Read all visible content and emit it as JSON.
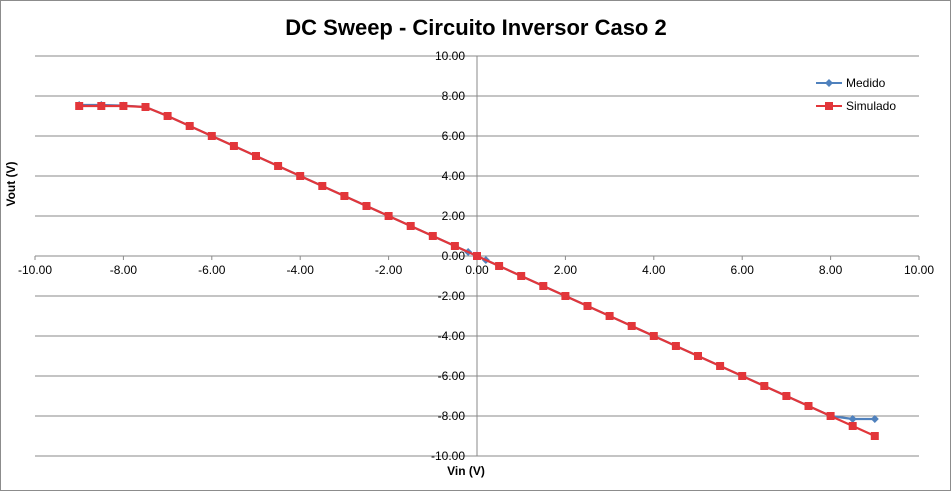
{
  "chart_data": {
    "type": "line",
    "title": "DC Sweep - Circuito Inversor Caso 2",
    "xlabel": "Vin (V)",
    "ylabel": "Vout (V)",
    "xlim": [
      -10,
      10
    ],
    "ylim": [
      -10,
      10
    ],
    "x_ticks": [
      "-10.00",
      "-8.00",
      "-6.00",
      "-4.00",
      "-2.00",
      "0.00",
      "2.00",
      "4.00",
      "6.00",
      "8.00",
      "10.00"
    ],
    "y_ticks": [
      "10.00",
      "8.00",
      "6.00",
      "4.00",
      "2.00",
      "0.00",
      "-2.00",
      "-4.00",
      "-6.00",
      "-8.00",
      "-10.00"
    ],
    "grid": "horizontal",
    "legend_position": "top-right",
    "series": [
      {
        "name": "Medido",
        "color": "#4f81bd",
        "marker": "diamond",
        "x": [
          -9,
          -8.5,
          -8,
          -7.5,
          -7,
          -6.5,
          -6,
          -5.5,
          -5,
          -4.5,
          -4,
          -3.5,
          -3,
          -2.5,
          -2,
          -1.5,
          -1,
          -0.5,
          -0.2,
          0,
          0.2,
          0.5,
          1,
          1.5,
          2,
          2.5,
          3,
          3.5,
          4,
          4.5,
          5,
          5.5,
          6,
          6.5,
          7,
          7.5,
          8,
          8.5,
          9
        ],
        "y": [
          7.55,
          7.55,
          7.52,
          7.45,
          7.0,
          6.5,
          6.0,
          5.5,
          5.0,
          4.5,
          4.0,
          3.5,
          3.0,
          2.5,
          2.0,
          1.5,
          1.0,
          0.5,
          0.2,
          0.0,
          -0.2,
          -0.5,
          -1.0,
          -1.5,
          -2.0,
          -2.5,
          -3.0,
          -3.5,
          -4.0,
          -4.5,
          -5.0,
          -5.5,
          -6.0,
          -6.5,
          -7.0,
          -7.5,
          -8.0,
          -8.15,
          -8.15
        ]
      },
      {
        "name": "Simulado",
        "color": "#e2363a",
        "marker": "square",
        "x": [
          -9,
          -8.5,
          -8,
          -7.5,
          -7,
          -6.5,
          -6,
          -5.5,
          -5,
          -4.5,
          -4,
          -3.5,
          -3,
          -2.5,
          -2,
          -1.5,
          -1,
          -0.5,
          0,
          0.5,
          1,
          1.5,
          2,
          2.5,
          3,
          3.5,
          4,
          4.5,
          5,
          5.5,
          6,
          6.5,
          7,
          7.5,
          8,
          8.5,
          9
        ],
        "y": [
          7.5,
          7.5,
          7.5,
          7.45,
          7.0,
          6.5,
          6.0,
          5.5,
          5.0,
          4.5,
          4.0,
          3.5,
          3.0,
          2.5,
          2.0,
          1.5,
          1.0,
          0.5,
          0.0,
          -0.5,
          -1.0,
          -1.5,
          -2.0,
          -2.5,
          -3.0,
          -3.5,
          -4.0,
          -4.5,
          -5.0,
          -5.5,
          -6.0,
          -6.5,
          -7.0,
          -7.5,
          -8.0,
          -8.5,
          -9.0
        ]
      }
    ]
  }
}
